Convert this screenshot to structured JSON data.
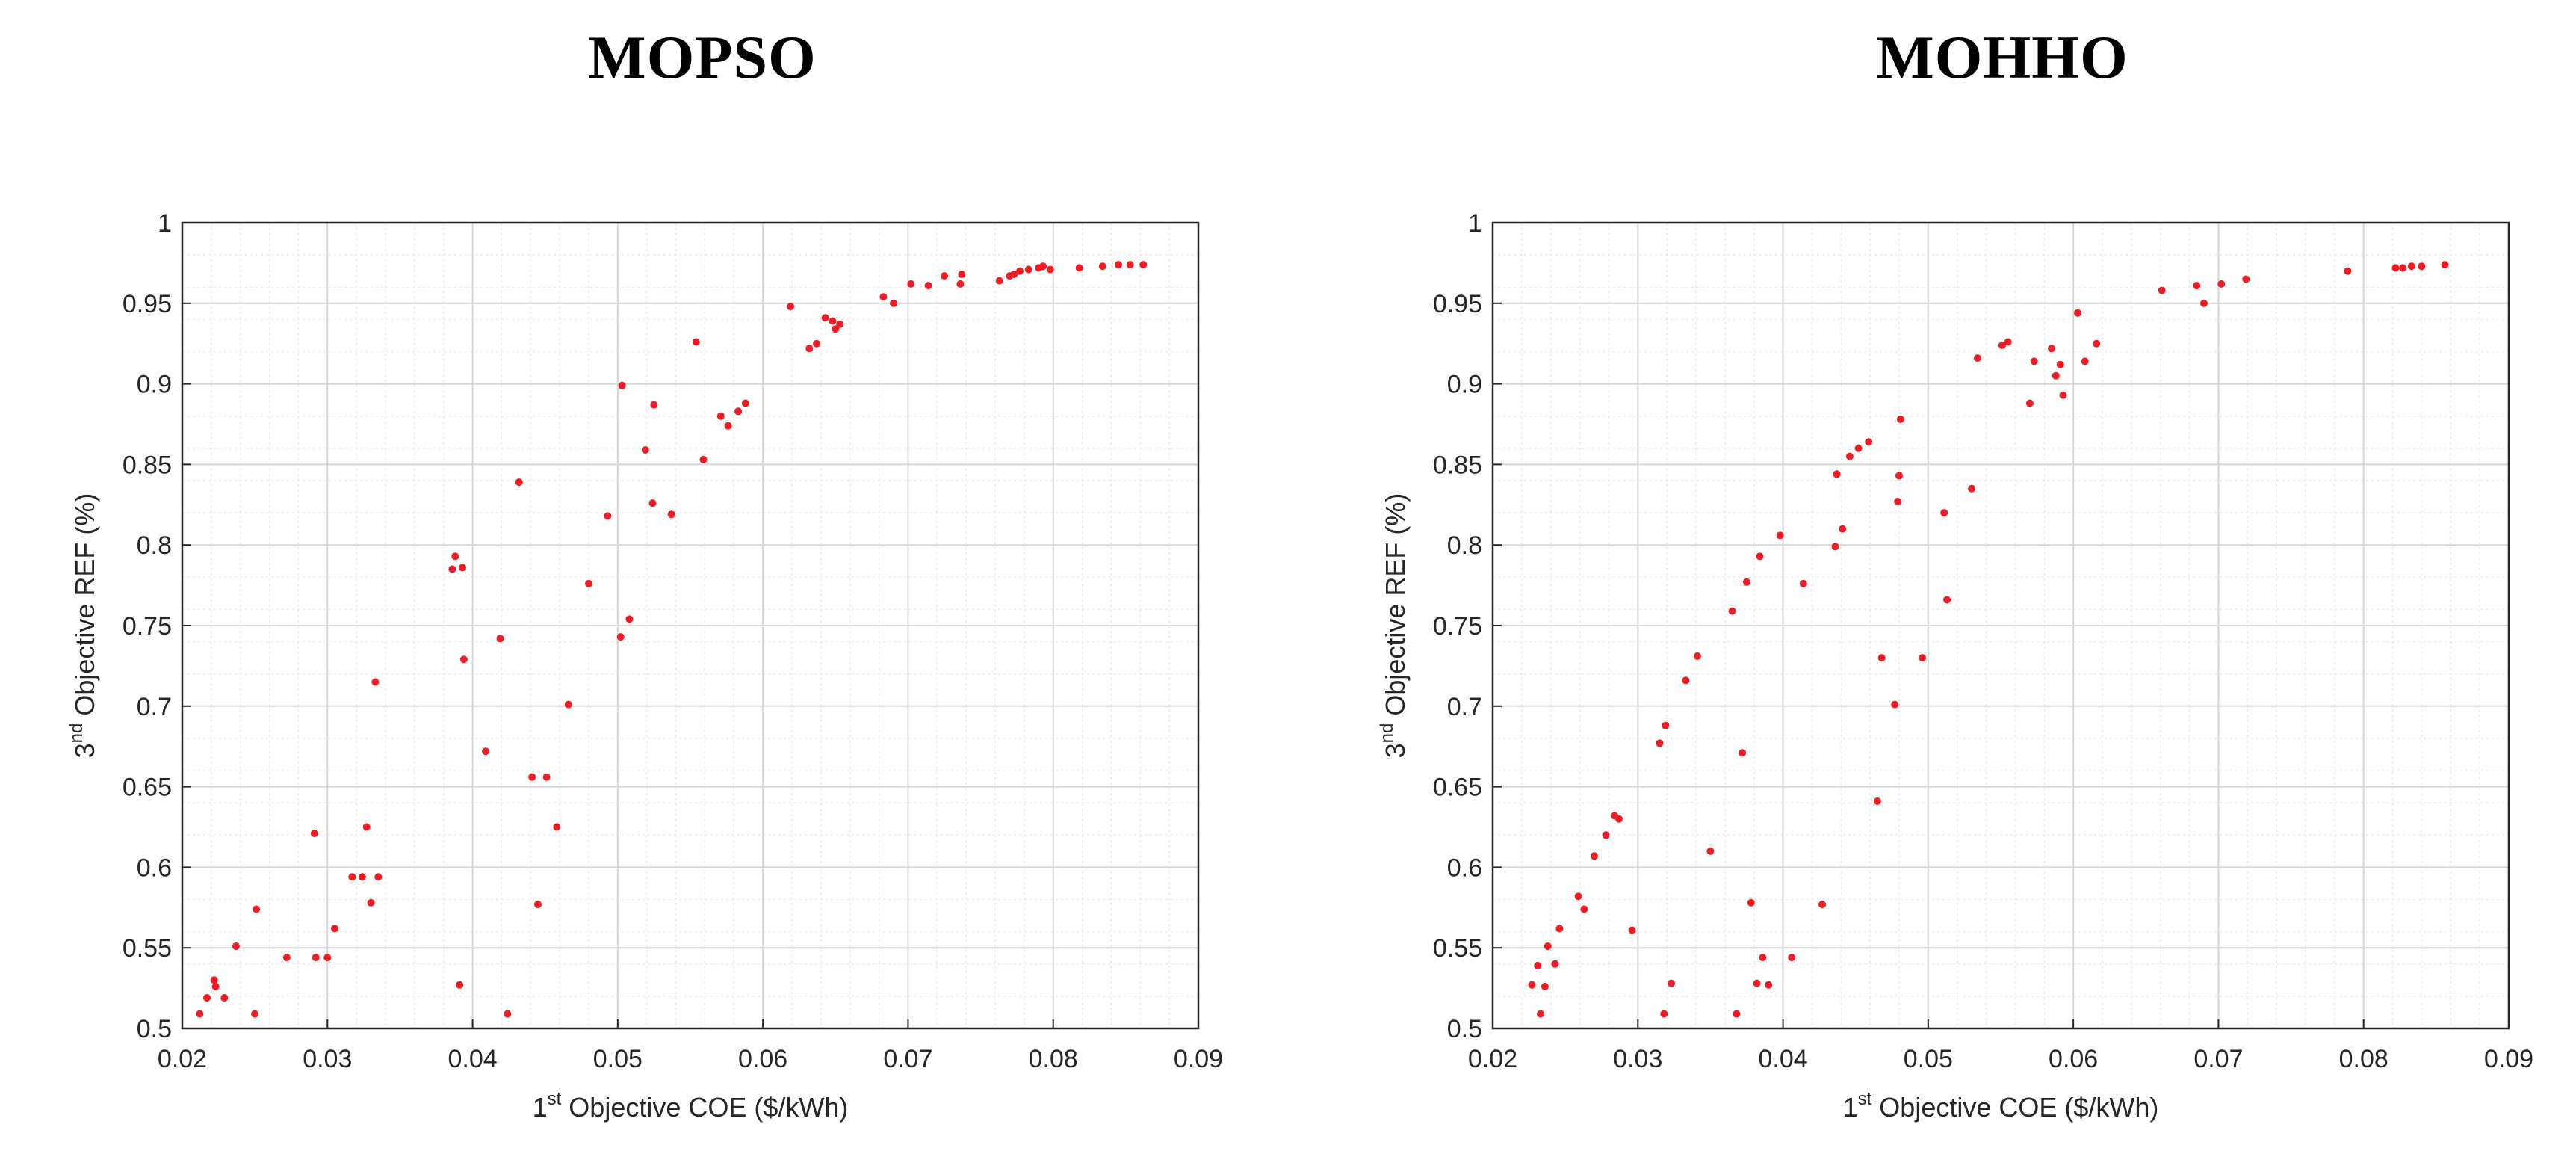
{
  "chart_data": [
    {
      "type": "scatter",
      "title": "MOPSO",
      "xlabel": {
        "main": "1",
        "sup": "st",
        "rest": " Objective COE ($/kWh)"
      },
      "ylabel": {
        "main": "3",
        "sup": "nd",
        "rest": " Objective REF (%)"
      },
      "xlim": [
        0.02,
        0.09
      ],
      "ylim": [
        0.5,
        1
      ],
      "xticks": [
        "0.02",
        "0.03",
        "0.04",
        "0.05",
        "0.06",
        "0.07",
        "0.08",
        "0.09"
      ],
      "yticks": [
        "0.5",
        "0.55",
        "0.6",
        "0.65",
        "0.7",
        "0.75",
        "0.8",
        "0.85",
        "0.9",
        "0.95",
        "1"
      ],
      "grid": true,
      "minor_grid": true,
      "marker_color": "#ee1c25",
      "points": [
        [
          0.0212,
          0.509
        ],
        [
          0.0217,
          0.519
        ],
        [
          0.0222,
          0.53
        ],
        [
          0.0223,
          0.526
        ],
        [
          0.0229,
          0.519
        ],
        [
          0.0237,
          0.551
        ],
        [
          0.025,
          0.509
        ],
        [
          0.0251,
          0.574
        ],
        [
          0.0272,
          0.544
        ],
        [
          0.0291,
          0.621
        ],
        [
          0.0292,
          0.544
        ],
        [
          0.03,
          0.544
        ],
        [
          0.0305,
          0.562
        ],
        [
          0.0317,
          0.594
        ],
        [
          0.0324,
          0.594
        ],
        [
          0.0327,
          0.625
        ],
        [
          0.033,
          0.578
        ],
        [
          0.0333,
          0.715
        ],
        [
          0.0335,
          0.594
        ],
        [
          0.0386,
          0.785
        ],
        [
          0.0388,
          0.793
        ],
        [
          0.0391,
          0.527
        ],
        [
          0.0393,
          0.786
        ],
        [
          0.0394,
          0.729
        ],
        [
          0.0409,
          0.672
        ],
        [
          0.0419,
          0.742
        ],
        [
          0.0424,
          0.509
        ],
        [
          0.0432,
          0.839
        ],
        [
          0.0441,
          0.656
        ],
        [
          0.0445,
          0.577
        ],
        [
          0.0451,
          0.656
        ],
        [
          0.0458,
          0.625
        ],
        [
          0.0466,
          0.701
        ],
        [
          0.048,
          0.776
        ],
        [
          0.0493,
          0.818
        ],
        [
          0.0502,
          0.743
        ],
        [
          0.0503,
          0.899
        ],
        [
          0.0508,
          0.754
        ],
        [
          0.0519,
          0.859
        ],
        [
          0.0524,
          0.826
        ],
        [
          0.0525,
          0.887
        ],
        [
          0.0537,
          0.819
        ],
        [
          0.0554,
          0.926
        ],
        [
          0.0559,
          0.853
        ],
        [
          0.0571,
          0.88
        ],
        [
          0.0576,
          0.874
        ],
        [
          0.0583,
          0.883
        ],
        [
          0.0588,
          0.888
        ],
        [
          0.0619,
          0.948
        ],
        [
          0.0632,
          0.922
        ],
        [
          0.0637,
          0.925
        ],
        [
          0.0643,
          0.941
        ],
        [
          0.0648,
          0.939
        ],
        [
          0.065,
          0.934
        ],
        [
          0.0653,
          0.937
        ],
        [
          0.0683,
          0.954
        ],
        [
          0.069,
          0.95
        ],
        [
          0.0702,
          0.962
        ],
        [
          0.0714,
          0.961
        ],
        [
          0.0725,
          0.967
        ],
        [
          0.0736,
          0.962
        ],
        [
          0.0737,
          0.968
        ],
        [
          0.0763,
          0.964
        ],
        [
          0.077,
          0.967
        ],
        [
          0.0773,
          0.968
        ],
        [
          0.0777,
          0.97
        ],
        [
          0.0783,
          0.971
        ],
        [
          0.079,
          0.972
        ],
        [
          0.0793,
          0.973
        ],
        [
          0.0798,
          0.971
        ],
        [
          0.0818,
          0.972
        ],
        [
          0.0834,
          0.973
        ],
        [
          0.0845,
          0.974
        ],
        [
          0.0853,
          0.974
        ],
        [
          0.0862,
          0.974
        ]
      ]
    },
    {
      "type": "scatter",
      "title": "MOHHO",
      "xlabel": {
        "main": "1",
        "sup": "st",
        "rest": " Objective COE ($/kWh)"
      },
      "ylabel": {
        "main": "3",
        "sup": "nd",
        "rest": " Objective REF (%)"
      },
      "xlim": [
        0.02,
        0.09
      ],
      "ylim": [
        0.5,
        1
      ],
      "xticks": [
        "0.02",
        "0.03",
        "0.04",
        "0.05",
        "0.06",
        "0.07",
        "0.08",
        "0.09"
      ],
      "yticks": [
        "0.5",
        "0.55",
        "0.6",
        "0.65",
        "0.7",
        "0.75",
        "0.8",
        "0.85",
        "0.9",
        "0.95",
        "1"
      ],
      "grid": true,
      "minor_grid": true,
      "marker_color": "#ee1c25",
      "points": [
        [
          0.0227,
          0.527
        ],
        [
          0.0231,
          0.539
        ],
        [
          0.0233,
          0.509
        ],
        [
          0.0236,
          0.526
        ],
        [
          0.0238,
          0.551
        ],
        [
          0.0243,
          0.54
        ],
        [
          0.0246,
          0.562
        ],
        [
          0.0259,
          0.582
        ],
        [
          0.0263,
          0.574
        ],
        [
          0.027,
          0.607
        ],
        [
          0.0278,
          0.62
        ],
        [
          0.0284,
          0.632
        ],
        [
          0.0287,
          0.63
        ],
        [
          0.0296,
          0.561
        ],
        [
          0.0315,
          0.677
        ],
        [
          0.0318,
          0.509
        ],
        [
          0.0319,
          0.688
        ],
        [
          0.0323,
          0.528
        ],
        [
          0.0333,
          0.716
        ],
        [
          0.0341,
          0.731
        ],
        [
          0.035,
          0.61
        ],
        [
          0.0365,
          0.759
        ],
        [
          0.0368,
          0.509
        ],
        [
          0.0372,
          0.671
        ],
        [
          0.0375,
          0.777
        ],
        [
          0.0378,
          0.578
        ],
        [
          0.0382,
          0.528
        ],
        [
          0.0384,
          0.793
        ],
        [
          0.0386,
          0.544
        ],
        [
          0.039,
          0.527
        ],
        [
          0.0398,
          0.806
        ],
        [
          0.0406,
          0.544
        ],
        [
          0.0414,
          0.776
        ],
        [
          0.0427,
          0.577
        ],
        [
          0.0436,
          0.799
        ],
        [
          0.0437,
          0.844
        ],
        [
          0.0441,
          0.81
        ],
        [
          0.0446,
          0.855
        ],
        [
          0.0452,
          0.86
        ],
        [
          0.0459,
          0.864
        ],
        [
          0.0465,
          0.641
        ],
        [
          0.0468,
          0.73
        ],
        [
          0.0477,
          0.701
        ],
        [
          0.0479,
          0.827
        ],
        [
          0.048,
          0.843
        ],
        [
          0.0481,
          0.878
        ],
        [
          0.0496,
          0.73
        ],
        [
          0.0511,
          0.82
        ],
        [
          0.0513,
          0.766
        ],
        [
          0.053,
          0.835
        ],
        [
          0.0534,
          0.916
        ],
        [
          0.0551,
          0.924
        ],
        [
          0.0555,
          0.926
        ],
        [
          0.057,
          0.888
        ],
        [
          0.0573,
          0.914
        ],
        [
          0.0585,
          0.922
        ],
        [
          0.0588,
          0.905
        ],
        [
          0.0591,
          0.912
        ],
        [
          0.0593,
          0.893
        ],
        [
          0.0603,
          0.944
        ],
        [
          0.0608,
          0.914
        ],
        [
          0.0616,
          0.925
        ],
        [
          0.0661,
          0.958
        ],
        [
          0.0685,
          0.961
        ],
        [
          0.069,
          0.95
        ],
        [
          0.0702,
          0.962
        ],
        [
          0.0719,
          0.965
        ],
        [
          0.0789,
          0.97
        ],
        [
          0.0822,
          0.972
        ],
        [
          0.0827,
          0.972
        ],
        [
          0.0833,
          0.973
        ],
        [
          0.084,
          0.973
        ],
        [
          0.0856,
          0.974
        ]
      ]
    }
  ]
}
